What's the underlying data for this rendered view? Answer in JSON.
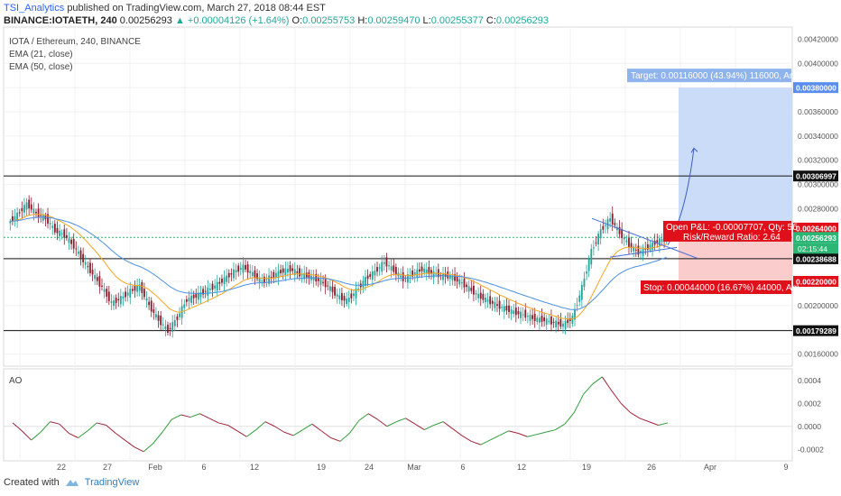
{
  "header": {
    "user": "TSI_Analytics",
    "published": "published on TradingView.com, March 27, 2018 08:44 EST",
    "symbol": "BINANCE:IOTAETH, 240",
    "last": "0.00256293",
    "change": "+0.00004126 (+1.64%)",
    "o_label": "O:",
    "o": "0.00255753",
    "h_label": "H:",
    "h": "0.00259470",
    "l_label": "L:",
    "l": "0.00255377",
    "c_label": "C:",
    "c": "0.00256293"
  },
  "legend": {
    "title": "IOTA / Ethereum, 240, BINANCE",
    "ema21": "EMA (21, close)",
    "ema50": "EMA (50, close)",
    "ao": "AO"
  },
  "footer": {
    "created": "Created with",
    "brand": "TradingView"
  },
  "colors": {
    "up": "#26a69a",
    "down": "#8b1e2e",
    "ema21": "#f5a623",
    "ema50": "#4a90e2",
    "target_zone": "#c5d8f7",
    "stop_zone": "#fbc7c7",
    "price_line": "#2bb673"
  },
  "chart_data": [
    {
      "type": "candlestick",
      "y_min": 0.0015,
      "y_max": 0.0043,
      "x_tick_labels": [
        "22",
        "27",
        "Feb",
        "6",
        "12",
        "19",
        "24",
        "Mar",
        "6",
        "12",
        "19",
        "26",
        "Apr",
        "9"
      ],
      "y_tick_labels": [
        "0.00420000",
        "0.00400000",
        "0.00360000",
        "0.00340000",
        "0.00320000",
        "0.00300000",
        "0.00280000",
        "0.00220000",
        "0.00200000",
        "0.00160000"
      ],
      "close_path": [
        0.00268,
        0.00275,
        0.00284,
        0.00276,
        0.00272,
        0.00262,
        0.00258,
        0.00249,
        0.00237,
        0.00226,
        0.00215,
        0.00202,
        0.00206,
        0.00212,
        0.00216,
        0.002,
        0.00188,
        0.00179,
        0.0019,
        0.00205,
        0.00208,
        0.00212,
        0.00216,
        0.00222,
        0.00228,
        0.00232,
        0.00226,
        0.0022,
        0.00224,
        0.00228,
        0.0023,
        0.00226,
        0.00224,
        0.00221,
        0.00216,
        0.00208,
        0.00204,
        0.00212,
        0.00222,
        0.00228,
        0.00236,
        0.00229,
        0.00222,
        0.00226,
        0.0023,
        0.00227,
        0.00225,
        0.00224,
        0.0022,
        0.00214,
        0.00208,
        0.00204,
        0.002,
        0.00197,
        0.00194,
        0.00192,
        0.00189,
        0.00188,
        0.00186,
        0.00184,
        0.0019,
        0.00215,
        0.00245,
        0.00262,
        0.00272,
        0.0026,
        0.0025,
        0.00244,
        0.00248,
        0.00253,
        0.00256
      ],
      "horizontal_levels": [
        {
          "value": 0.00306997,
          "label": "0.00306997"
        },
        {
          "value": 0.00238688,
          "label": "0.00238688"
        },
        {
          "value": 0.00179289,
          "label": "0.00179289"
        }
      ],
      "price_labels": [
        {
          "value": 0.0038,
          "label": "0.00380000"
        },
        {
          "value": 0.00264,
          "label": "0.00264000"
        },
        {
          "value": 0.00256293,
          "label": "0.00256293"
        },
        {
          "value": 0.0022,
          "label": "0.00220000"
        }
      ],
      "countdown": "02:15:44",
      "position": {
        "entry": 0.00264,
        "target": 0.0038,
        "stop": 0.0022,
        "target_label": "Target: 0.00116000 (43.94%) 116000, Am",
        "stop_label": "Stop: 0.00044000 (16.67%) 44000, Am",
        "pnl_label": "Open P&L: -0.00007707, Qty: 5б",
        "rr_label": "Risk/Reward Ratio: 2.64"
      }
    },
    {
      "type": "line",
      "name": "AO",
      "y_min": -0.0003,
      "y_max": 0.0005,
      "y_tick_labels": [
        "0.0004",
        "0.0002",
        "0.0000",
        "-0.0002"
      ],
      "values": [
        3e-05,
        -4e-05,
        -0.00012,
        -5e-05,
        4e-05,
        2e-05,
        -6e-05,
        -0.0001,
        -4e-05,
        3e-05,
        1e-05,
        -6e-05,
        -0.00012,
        -0.00018,
        -0.00022,
        -0.00015,
        -5e-05,
        6e-05,
        0.0001,
        8e-05,
        0.00011,
        7e-05,
        3e-05,
        1e-05,
        -4e-05,
        -9e-05,
        -3e-05,
        4e-05,
        0.0,
        -5e-05,
        -8e-05,
        -3e-05,
        2e-05,
        -4e-05,
        -0.0001,
        -0.00013,
        -6e-05,
        5e-05,
        0.00011,
        6e-05,
        0.0,
        4e-05,
        7e-05,
        2e-05,
        -3e-05,
        1e-05,
        4e-05,
        -2e-05,
        -8e-05,
        -0.00013,
        -0.00016,
        -0.00012,
        -8e-05,
        -4e-05,
        -6e-05,
        -9e-05,
        -7e-05,
        -5e-05,
        -3e-05,
        2e-05,
        0.00012,
        0.00028,
        0.00037,
        0.00043,
        0.00031,
        0.0002,
        0.00012,
        7e-05,
        4e-05,
        1e-05,
        3e-05
      ],
      "zero_line": true
    }
  ]
}
